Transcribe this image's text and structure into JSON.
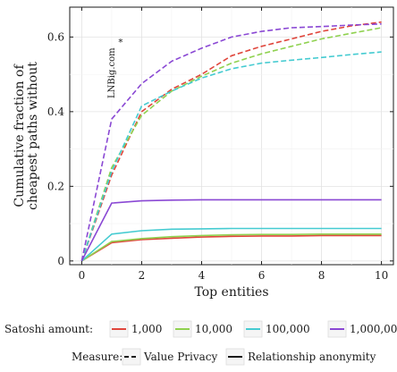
{
  "chart_data": {
    "type": "line",
    "xlabel": "Top entities",
    "ylabel": [
      "Cumulative fraction of",
      "cheapest paths without"
    ],
    "xlim": [
      -0.4,
      10.4
    ],
    "ylim": [
      -0.01,
      0.68
    ],
    "x_ticks": [
      0,
      2,
      4,
      6,
      8,
      10
    ],
    "y_ticks": [
      0,
      0.2,
      0.4,
      0.6
    ],
    "y_tick_labels": [
      "0",
      "0.2",
      "0.4",
      "0.6"
    ],
    "grid": true,
    "x": [
      0,
      1,
      2,
      3,
      4,
      5,
      6,
      7,
      8,
      9,
      10
    ],
    "series": [
      {
        "amount": "1,000",
        "measure": "Value Privacy",
        "color": "#e0463c",
        "dash": true,
        "values": [
          0,
          0.23,
          0.4,
          0.46,
          0.5,
          0.55,
          0.575,
          0.595,
          0.615,
          0.63,
          0.64
        ]
      },
      {
        "amount": "10,000",
        "measure": "Value Privacy",
        "color": "#8fd14f",
        "dash": true,
        "values": [
          0,
          0.25,
          0.39,
          0.455,
          0.495,
          0.53,
          0.555,
          0.575,
          0.595,
          0.61,
          0.625
        ]
      },
      {
        "amount": "100,000",
        "measure": "Value Privacy",
        "color": "#45cbd1",
        "dash": true,
        "values": [
          0,
          0.24,
          0.415,
          0.455,
          0.49,
          0.515,
          0.53,
          0.538,
          0.545,
          0.553,
          0.56
        ]
      },
      {
        "amount": "1,000,000",
        "measure": "Value Privacy",
        "color": "#8a48d4",
        "dash": true,
        "values": [
          0,
          0.38,
          0.475,
          0.535,
          0.57,
          0.6,
          0.615,
          0.625,
          0.628,
          0.632,
          0.635
        ]
      },
      {
        "amount": "1,000",
        "measure": "Relationship anonymity",
        "color": "#e0463c",
        "dash": false,
        "values": [
          0,
          0.049,
          0.057,
          0.061,
          0.064,
          0.066,
          0.067,
          0.067,
          0.068,
          0.068,
          0.068
        ]
      },
      {
        "amount": "10,000",
        "measure": "Relationship anonymity",
        "color": "#8fd14f",
        "dash": false,
        "values": [
          0,
          0.052,
          0.06,
          0.065,
          0.068,
          0.07,
          0.071,
          0.071,
          0.072,
          0.072,
          0.072
        ]
      },
      {
        "amount": "100,000",
        "measure": "Relationship anonymity",
        "color": "#45cbd1",
        "dash": false,
        "values": [
          0,
          0.072,
          0.081,
          0.085,
          0.086,
          0.087,
          0.087,
          0.087,
          0.087,
          0.087,
          0.087
        ]
      },
      {
        "amount": "1,000,000",
        "measure": "Relationship anonymity",
        "color": "#8a48d4",
        "dash": false,
        "values": [
          0,
          0.155,
          0.161,
          0.163,
          0.164,
          0.164,
          0.164,
          0.164,
          0.164,
          0.164,
          0.164
        ]
      }
    ],
    "annotation": {
      "text": "LNBig.com",
      "x": 1,
      "marker": "*",
      "marker_y": 0.59
    },
    "legend": {
      "amount_title": "Satoshi amount:",
      "amounts": [
        {
          "label": "1,000",
          "color": "#e0463c"
        },
        {
          "label": "10,000",
          "color": "#8fd14f"
        },
        {
          "label": "100,000",
          "color": "#45cbd1"
        },
        {
          "label": "1,000,000",
          "color": "#8a48d4"
        }
      ],
      "measure_title": "Measure:",
      "measures": [
        {
          "label": "Value Privacy",
          "dash": true
        },
        {
          "label": "Relationship anonymity",
          "dash": false
        }
      ],
      "placement": "bottom"
    }
  }
}
